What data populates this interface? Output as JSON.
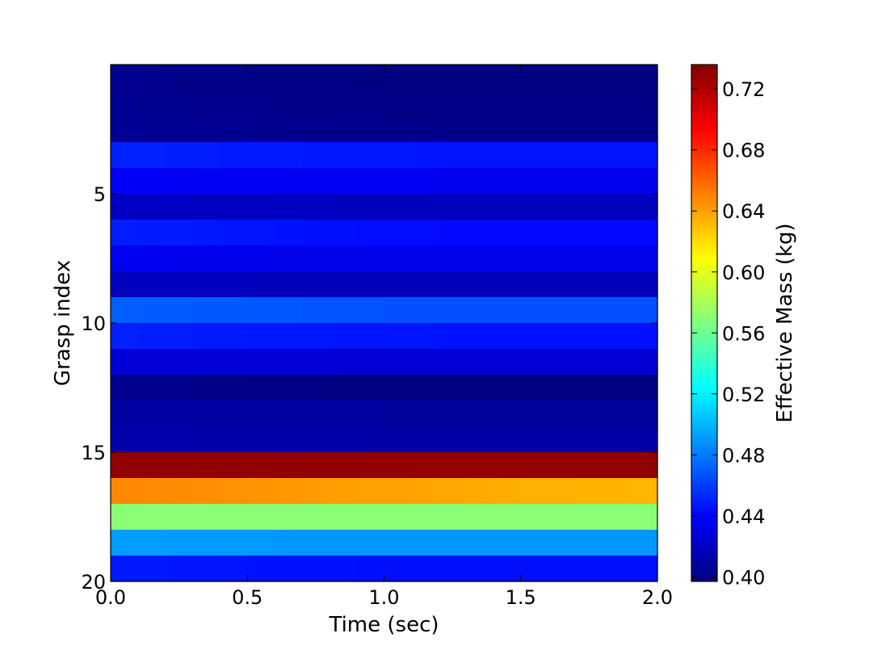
{
  "chart_data": {
    "type": "heatmap",
    "title": "",
    "xlabel": "Time (sec)",
    "ylabel": "Grasp index",
    "colorbar_label": "Effective Mass (kg)",
    "colormap": "jet",
    "xlim": [
      0.0,
      2.0
    ],
    "ylim": [
      20,
      0
    ],
    "x_ticks": [
      "0.0",
      "0.5",
      "1.0",
      "1.5",
      "2.0"
    ],
    "y_ticks": [
      "5",
      "10",
      "15",
      "20"
    ],
    "colorbar_range": [
      0.397,
      0.736
    ],
    "colorbar_ticks": [
      "0.40",
      "0.44",
      "0.48",
      "0.52",
      "0.56",
      "0.60",
      "0.64",
      "0.68",
      "0.72"
    ],
    "grid": false,
    "rows": [
      1,
      2,
      3,
      4,
      5,
      6,
      7,
      8,
      9,
      10,
      11,
      12,
      13,
      14,
      15,
      16,
      17,
      18,
      19,
      20
    ],
    "time_samples": [
      0.0,
      0.1,
      0.2,
      0.3,
      0.4,
      0.5,
      0.6,
      0.7,
      0.8,
      0.9,
      1.0,
      1.1,
      1.2,
      1.3,
      1.4,
      1.5,
      1.6,
      1.7,
      1.8,
      1.9
    ],
    "values": [
      [
        0.402,
        0.401,
        0.4,
        0.4,
        0.4,
        0.399,
        0.399,
        0.399,
        0.399,
        0.398,
        0.398,
        0.398,
        0.398,
        0.398,
        0.398,
        0.398,
        0.398,
        0.398,
        0.398,
        0.398
      ],
      [
        0.403,
        0.402,
        0.402,
        0.401,
        0.401,
        0.401,
        0.4,
        0.4,
        0.4,
        0.4,
        0.399,
        0.399,
        0.399,
        0.399,
        0.399,
        0.399,
        0.399,
        0.399,
        0.399,
        0.399
      ],
      [
        0.405,
        0.404,
        0.404,
        0.403,
        0.403,
        0.402,
        0.402,
        0.402,
        0.401,
        0.401,
        0.401,
        0.401,
        0.4,
        0.4,
        0.4,
        0.4,
        0.4,
        0.4,
        0.4,
        0.4
      ],
      [
        0.45,
        0.45,
        0.449,
        0.449,
        0.448,
        0.448,
        0.448,
        0.447,
        0.447,
        0.447,
        0.447,
        0.446,
        0.446,
        0.446,
        0.446,
        0.446,
        0.446,
        0.446,
        0.446,
        0.446
      ],
      [
        0.437,
        0.437,
        0.436,
        0.436,
        0.436,
        0.436,
        0.435,
        0.435,
        0.435,
        0.435,
        0.435,
        0.435,
        0.434,
        0.434,
        0.434,
        0.434,
        0.434,
        0.434,
        0.434,
        0.434
      ],
      [
        0.42,
        0.42,
        0.42,
        0.419,
        0.419,
        0.419,
        0.419,
        0.419,
        0.418,
        0.418,
        0.418,
        0.418,
        0.418,
        0.418,
        0.418,
        0.418,
        0.418,
        0.418,
        0.418,
        0.418
      ],
      [
        0.449,
        0.448,
        0.448,
        0.447,
        0.446,
        0.446,
        0.445,
        0.444,
        0.444,
        0.443,
        0.443,
        0.443,
        0.442,
        0.442,
        0.442,
        0.442,
        0.442,
        0.442,
        0.442,
        0.442
      ],
      [
        0.435,
        0.435,
        0.434,
        0.434,
        0.434,
        0.434,
        0.433,
        0.433,
        0.433,
        0.433,
        0.433,
        0.433,
        0.433,
        0.433,
        0.433,
        0.433,
        0.433,
        0.433,
        0.433,
        0.433
      ],
      [
        0.418,
        0.418,
        0.418,
        0.418,
        0.418,
        0.417,
        0.417,
        0.417,
        0.417,
        0.417,
        0.417,
        0.417,
        0.417,
        0.417,
        0.417,
        0.417,
        0.417,
        0.417,
        0.417,
        0.417
      ],
      [
        0.471,
        0.47,
        0.47,
        0.469,
        0.469,
        0.468,
        0.468,
        0.467,
        0.467,
        0.467,
        0.466,
        0.466,
        0.466,
        0.466,
        0.466,
        0.466,
        0.466,
        0.466,
        0.466,
        0.466
      ],
      [
        0.45,
        0.449,
        0.449,
        0.448,
        0.448,
        0.447,
        0.447,
        0.447,
        0.446,
        0.446,
        0.446,
        0.446,
        0.445,
        0.445,
        0.445,
        0.445,
        0.445,
        0.445,
        0.445,
        0.445
      ],
      [
        0.427,
        0.427,
        0.427,
        0.426,
        0.426,
        0.426,
        0.426,
        0.426,
        0.425,
        0.425,
        0.425,
        0.425,
        0.425,
        0.425,
        0.425,
        0.425,
        0.425,
        0.425,
        0.425,
        0.425
      ],
      [
        0.402,
        0.401,
        0.401,
        0.4,
        0.4,
        0.399,
        0.399,
        0.399,
        0.398,
        0.398,
        0.398,
        0.398,
        0.398,
        0.398,
        0.398,
        0.398,
        0.398,
        0.398,
        0.398,
        0.398
      ],
      [
        0.409,
        0.409,
        0.408,
        0.408,
        0.408,
        0.407,
        0.407,
        0.407,
        0.407,
        0.407,
        0.406,
        0.406,
        0.406,
        0.406,
        0.406,
        0.406,
        0.406,
        0.406,
        0.406,
        0.406
      ],
      [
        0.412,
        0.412,
        0.412,
        0.411,
        0.411,
        0.411,
        0.411,
        0.411,
        0.411,
        0.41,
        0.41,
        0.41,
        0.41,
        0.41,
        0.41,
        0.41,
        0.41,
        0.41,
        0.41,
        0.41
      ],
      [
        0.73,
        0.73,
        0.73,
        0.73,
        0.73,
        0.73,
        0.73,
        0.73,
        0.73,
        0.73,
        0.73,
        0.73,
        0.73,
        0.73,
        0.73,
        0.73,
        0.73,
        0.73,
        0.73,
        0.73
      ],
      [
        0.649,
        0.648,
        0.647,
        0.646,
        0.645,
        0.644,
        0.643,
        0.642,
        0.641,
        0.64,
        0.64,
        0.639,
        0.638,
        0.637,
        0.636,
        0.635,
        0.635,
        0.634,
        0.634,
        0.633
      ],
      [
        0.57,
        0.57,
        0.57,
        0.57,
        0.57,
        0.57,
        0.57,
        0.57,
        0.57,
        0.57,
        0.57,
        0.57,
        0.57,
        0.57,
        0.57,
        0.57,
        0.57,
        0.57,
        0.57,
        0.57
      ],
      [
        0.492,
        0.492,
        0.491,
        0.491,
        0.491,
        0.491,
        0.49,
        0.49,
        0.49,
        0.49,
        0.49,
        0.49,
        0.49,
        0.49,
        0.49,
        0.49,
        0.49,
        0.49,
        0.49,
        0.49
      ],
      [
        0.447,
        0.447,
        0.446,
        0.446,
        0.446,
        0.445,
        0.445,
        0.445,
        0.445,
        0.444,
        0.444,
        0.444,
        0.444,
        0.444,
        0.444,
        0.444,
        0.444,
        0.444,
        0.444,
        0.444
      ]
    ]
  }
}
